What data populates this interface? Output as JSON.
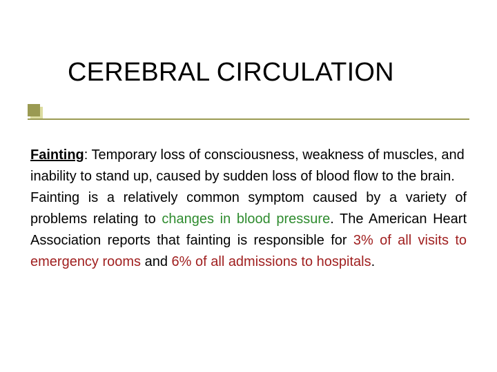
{
  "title": "CEREBRAL CIRCULATION",
  "bullet": {
    "main_color": "#9a9a52",
    "shadow_color": "#dcdca0"
  },
  "underline_color": "#9a9a52",
  "body": {
    "term": "Fainting",
    "def_rest": ": Temporary loss of consciousness, weakness of muscles, and inability to stand up, caused by sudden loss of blood flow to the brain.",
    "p2_a": "Fainting is a relatively common symptom caused by a variety of problems relating to ",
    "p2_green": "changes in blood pressure",
    "p2_b": ". The American Heart Association reports that fainting is responsible for ",
    "p2_red1": "3% of all visits to emergency rooms",
    "p2_c": " and ",
    "p2_red2": "6% of all admissions to hospitals",
    "p2_d": "."
  },
  "colors": {
    "green": "#2e8b2e",
    "red": "#a02020",
    "text": "#000000",
    "background": "#ffffff"
  },
  "font": {
    "family": "Verdana",
    "title_size_pt": 29,
    "body_size_pt": 15
  }
}
